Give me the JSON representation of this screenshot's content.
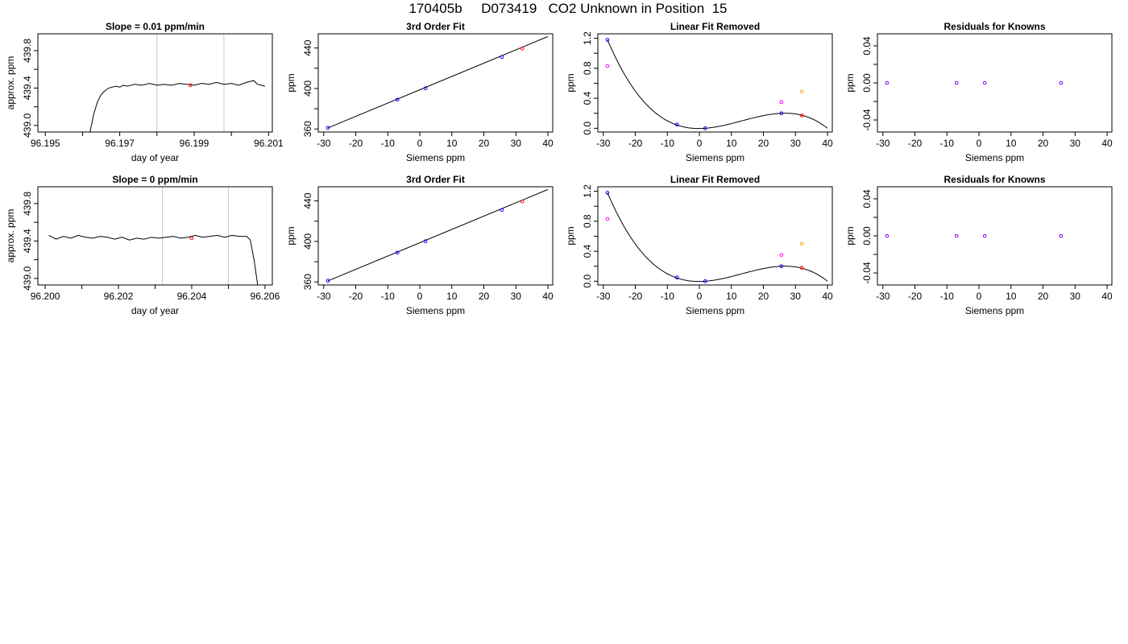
{
  "page": {
    "title": "170405b     D073419   CO2 Unknown in Position  15"
  },
  "colors": {
    "line": "#000000",
    "grid_vertical": "#c8c8c8",
    "known_points": "#0000ff",
    "unknown_point": "#ff0000",
    "extra_point_magenta": "#ff00ff",
    "extra_point_orange": "#ffa500",
    "residual_points": "#7f00ff"
  },
  "chart_data": [
    {
      "type": "line",
      "panel": "row1-col1",
      "title": "Slope =  0.01  ppm/min",
      "xlabel": "day of year",
      "ylabel": "approx. ppm",
      "xlim": [
        96.1948,
        96.2011
      ],
      "ylim": [
        438.93,
        439.98
      ],
      "xticks": [
        96.195,
        96.196,
        96.197,
        96.198,
        96.199,
        96.2,
        96.201
      ],
      "xtick_labels": [
        "96.195",
        "",
        "96.197",
        "",
        "96.199",
        "",
        "96.201"
      ],
      "yticks": [
        439.0,
        439.2,
        439.4,
        439.6,
        439.8
      ],
      "ytick_labels": [
        "439.0",
        "",
        "439.4",
        "",
        "439.8"
      ],
      "vlines": [
        96.198,
        96.1998
      ],
      "series": [
        {
          "x": [
            96.1962,
            96.1963,
            96.1964,
            96.1965,
            96.1966,
            96.1967,
            96.1968,
            96.1969,
            96.197,
            96.1971,
            96.1972,
            96.1974,
            96.1976,
            96.1978,
            96.198,
            96.1982,
            96.1984,
            96.1986,
            96.1988,
            96.199,
            96.1992,
            96.1994,
            96.1996,
            96.1998,
            96.2,
            96.2002,
            96.2004,
            96.2006,
            96.2007,
            96.2008,
            96.2009
          ],
          "y": [
            438.93,
            439.12,
            439.25,
            439.33,
            439.37,
            439.4,
            439.41,
            439.42,
            439.41,
            439.43,
            439.42,
            439.44,
            439.43,
            439.45,
            439.43,
            439.44,
            439.43,
            439.45,
            439.44,
            439.43,
            439.45,
            439.44,
            439.46,
            439.44,
            439.45,
            439.43,
            439.46,
            439.48,
            439.44,
            439.43,
            439.42
          ]
        }
      ],
      "marker": {
        "x": 96.1989,
        "y": 439.43,
        "color": "red"
      }
    },
    {
      "type": "scatter",
      "panel": "row1-col2",
      "title": "3rd Order Fit",
      "xlabel": "Siemens ppm",
      "ylabel": "ppm",
      "xlim": [
        -31.7,
        41.5
      ],
      "ylim": [
        357,
        454
      ],
      "xticks": [
        -30,
        -20,
        -10,
        0,
        10,
        20,
        30,
        40
      ],
      "xtick_labels": [
        "-30",
        "-20",
        "-10",
        "0",
        "10",
        "20",
        "30",
        "40"
      ],
      "yticks": [
        360,
        380,
        400,
        420,
        440
      ],
      "ytick_labels": [
        "360",
        "",
        "400",
        "",
        "440"
      ],
      "fit_line": {
        "x": [
          -28.7,
          40
        ],
        "y": [
          361.0,
          451.3
        ]
      },
      "points": [
        {
          "x": -28.7,
          "y": 361.2,
          "color": "blue"
        },
        {
          "x": -7.0,
          "y": 389.0,
          "color": "blue"
        },
        {
          "x": 1.8,
          "y": 400.2,
          "color": "blue"
        },
        {
          "x": 25.6,
          "y": 431.0,
          "color": "blue"
        },
        {
          "x": 32.0,
          "y": 439.5,
          "color": "red"
        }
      ]
    },
    {
      "type": "scatter",
      "panel": "row1-col3",
      "title": "Linear Fit Removed",
      "xlabel": "Siemens ppm",
      "ylabel": "ppm",
      "xlim": [
        -31.7,
        41.5
      ],
      "ylim": [
        -0.05,
        1.26
      ],
      "xticks": [
        -30,
        -20,
        -10,
        0,
        10,
        20,
        30,
        40
      ],
      "xtick_labels": [
        "-30",
        "-20",
        "-10",
        "0",
        "10",
        "20",
        "30",
        "40"
      ],
      "yticks": [
        0.0,
        0.2,
        0.4,
        0.6,
        0.8,
        1.0,
        1.2
      ],
      "ytick_labels": [
        "0.0",
        "",
        "0.4",
        "",
        "0.8",
        "",
        "1.2"
      ],
      "fit_curve": {
        "x": [
          -28.7,
          1.8,
          25.6,
          40
        ],
        "y": [
          1.18,
          0.0,
          0.2,
          0.0
        ]
      },
      "points": [
        {
          "x": -28.7,
          "y": 1.18,
          "color": "blue"
        },
        {
          "x": -28.7,
          "y": 0.83,
          "color": "magenta"
        },
        {
          "x": -7.0,
          "y": 0.05,
          "color": "blue"
        },
        {
          "x": 1.8,
          "y": 0.0,
          "color": "blue"
        },
        {
          "x": 25.6,
          "y": 0.2,
          "color": "blue"
        },
        {
          "x": 25.6,
          "y": 0.35,
          "color": "magenta"
        },
        {
          "x": 32.0,
          "y": 0.17,
          "color": "red"
        },
        {
          "x": 32.0,
          "y": 0.49,
          "color": "orange"
        }
      ]
    },
    {
      "type": "scatter",
      "panel": "row1-col4",
      "title": "Residuals for Knowns",
      "xlabel": "Siemens ppm",
      "ylabel": "ppm",
      "xlim": [
        -31.7,
        41.5
      ],
      "ylim": [
        -0.053,
        0.053
      ],
      "xticks": [
        -30,
        -20,
        -10,
        0,
        10,
        20,
        30,
        40
      ],
      "xtick_labels": [
        "-30",
        "-20",
        "-10",
        "0",
        "10",
        "20",
        "30",
        "40"
      ],
      "yticks": [
        -0.04,
        -0.02,
        0.0,
        0.02,
        0.04
      ],
      "ytick_labels": [
        "-0.04",
        "",
        "0.00",
        "",
        "0.04"
      ],
      "points": [
        {
          "x": -28.7,
          "y": 0.0,
          "color": "purple"
        },
        {
          "x": -7.0,
          "y": 0.0,
          "color": "purple"
        },
        {
          "x": 1.8,
          "y": 0.0,
          "color": "purple"
        },
        {
          "x": 25.6,
          "y": 0.0,
          "color": "purple"
        }
      ]
    },
    {
      "type": "line",
      "panel": "row2-col1",
      "title": "Slope =  0  ppm/min",
      "xlabel": "day of year",
      "ylabel": "approx. ppm",
      "xlim": [
        96.1998,
        96.2062
      ],
      "ylim": [
        438.93,
        439.98
      ],
      "xticks": [
        96.2,
        96.201,
        96.202,
        96.203,
        96.204,
        96.205,
        96.206
      ],
      "xtick_labels": [
        "96.200",
        "",
        "96.202",
        "",
        "96.204",
        "",
        "96.206"
      ],
      "yticks": [
        439.0,
        439.2,
        439.4,
        439.6,
        439.8
      ],
      "ytick_labels": [
        "439.0",
        "",
        "439.4",
        "",
        "439.8"
      ],
      "vlines": [
        96.2032,
        96.205
      ],
      "series": [
        {
          "x": [
            96.2001,
            96.2003,
            96.2005,
            96.2007,
            96.2009,
            96.2011,
            96.2013,
            96.2015,
            96.2017,
            96.2019,
            96.2021,
            96.2023,
            96.2025,
            96.2027,
            96.2029,
            96.2031,
            96.2033,
            96.2035,
            96.2037,
            96.2039,
            96.2041,
            96.2043,
            96.2045,
            96.2047,
            96.2049,
            96.2051,
            96.2053,
            96.2055,
            96.2056,
            96.2057,
            96.2058
          ],
          "y": [
            439.46,
            439.42,
            439.45,
            439.43,
            439.46,
            439.44,
            439.43,
            439.45,
            439.44,
            439.42,
            439.44,
            439.41,
            439.43,
            439.42,
            439.44,
            439.43,
            439.44,
            439.45,
            439.43,
            439.44,
            439.46,
            439.44,
            439.45,
            439.46,
            439.44,
            439.46,
            439.45,
            439.45,
            439.41,
            439.2,
            438.93
          ]
        }
      ],
      "marker": {
        "x": 96.204,
        "y": 439.43,
        "color": "red"
      }
    },
    {
      "type": "scatter",
      "panel": "row2-col2",
      "title": "3rd Order Fit",
      "xlabel": "Siemens ppm",
      "ylabel": "ppm",
      "xlim": [
        -31.7,
        41.5
      ],
      "ylim": [
        357,
        454
      ],
      "xticks": [
        -30,
        -20,
        -10,
        0,
        10,
        20,
        30,
        40
      ],
      "xtick_labels": [
        "-30",
        "-20",
        "-10",
        "0",
        "10",
        "20",
        "30",
        "40"
      ],
      "yticks": [
        360,
        380,
        400,
        420,
        440
      ],
      "ytick_labels": [
        "360",
        "",
        "400",
        "",
        "440"
      ],
      "fit_line": {
        "x": [
          -28.7,
          40
        ],
        "y": [
          361.0,
          451.3
        ]
      },
      "points": [
        {
          "x": -28.7,
          "y": 361.2,
          "color": "blue"
        },
        {
          "x": -7.0,
          "y": 389.0,
          "color": "blue"
        },
        {
          "x": 1.8,
          "y": 400.2,
          "color": "blue"
        },
        {
          "x": 25.6,
          "y": 431.0,
          "color": "blue"
        },
        {
          "x": 32.0,
          "y": 439.5,
          "color": "red"
        }
      ]
    },
    {
      "type": "scatter",
      "panel": "row2-col3",
      "title": "Linear Fit Removed",
      "xlabel": "Siemens ppm",
      "ylabel": "ppm",
      "xlim": [
        -31.7,
        41.5
      ],
      "ylim": [
        -0.05,
        1.26
      ],
      "xticks": [
        -30,
        -20,
        -10,
        0,
        10,
        20,
        30,
        40
      ],
      "xtick_labels": [
        "-30",
        "-20",
        "-10",
        "0",
        "10",
        "20",
        "30",
        "40"
      ],
      "yticks": [
        0.0,
        0.2,
        0.4,
        0.6,
        0.8,
        1.0,
        1.2
      ],
      "ytick_labels": [
        "0.0",
        "",
        "0.4",
        "",
        "0.8",
        "",
        "1.2"
      ],
      "fit_curve": {
        "x": [
          -28.7,
          1.8,
          25.6,
          40
        ],
        "y": [
          1.18,
          0.0,
          0.2,
          0.0
        ]
      },
      "points": [
        {
          "x": -28.7,
          "y": 1.18,
          "color": "blue"
        },
        {
          "x": -28.7,
          "y": 0.83,
          "color": "magenta"
        },
        {
          "x": -7.0,
          "y": 0.05,
          "color": "blue"
        },
        {
          "x": 1.8,
          "y": 0.0,
          "color": "blue"
        },
        {
          "x": 25.6,
          "y": 0.2,
          "color": "blue"
        },
        {
          "x": 25.6,
          "y": 0.35,
          "color": "magenta"
        },
        {
          "x": 32.0,
          "y": 0.18,
          "color": "red"
        },
        {
          "x": 32.0,
          "y": 0.5,
          "color": "orange"
        }
      ]
    },
    {
      "type": "scatter",
      "panel": "row2-col4",
      "title": "Residuals for Knowns",
      "xlabel": "Siemens ppm",
      "ylabel": "ppm",
      "xlim": [
        -31.7,
        41.5
      ],
      "ylim": [
        -0.053,
        0.053
      ],
      "xticks": [
        -30,
        -20,
        -10,
        0,
        10,
        20,
        30,
        40
      ],
      "xtick_labels": [
        "-30",
        "-20",
        "-10",
        "0",
        "10",
        "20",
        "30",
        "40"
      ],
      "yticks": [
        -0.04,
        -0.02,
        0.0,
        0.02,
        0.04
      ],
      "ytick_labels": [
        "-0.04",
        "",
        "0.00",
        "",
        "0.04"
      ],
      "points": [
        {
          "x": -28.7,
          "y": 0.0,
          "color": "purple"
        },
        {
          "x": -7.0,
          "y": 0.0,
          "color": "purple"
        },
        {
          "x": 1.8,
          "y": 0.0,
          "color": "purple"
        },
        {
          "x": 25.6,
          "y": 0.0,
          "color": "purple"
        }
      ]
    }
  ]
}
